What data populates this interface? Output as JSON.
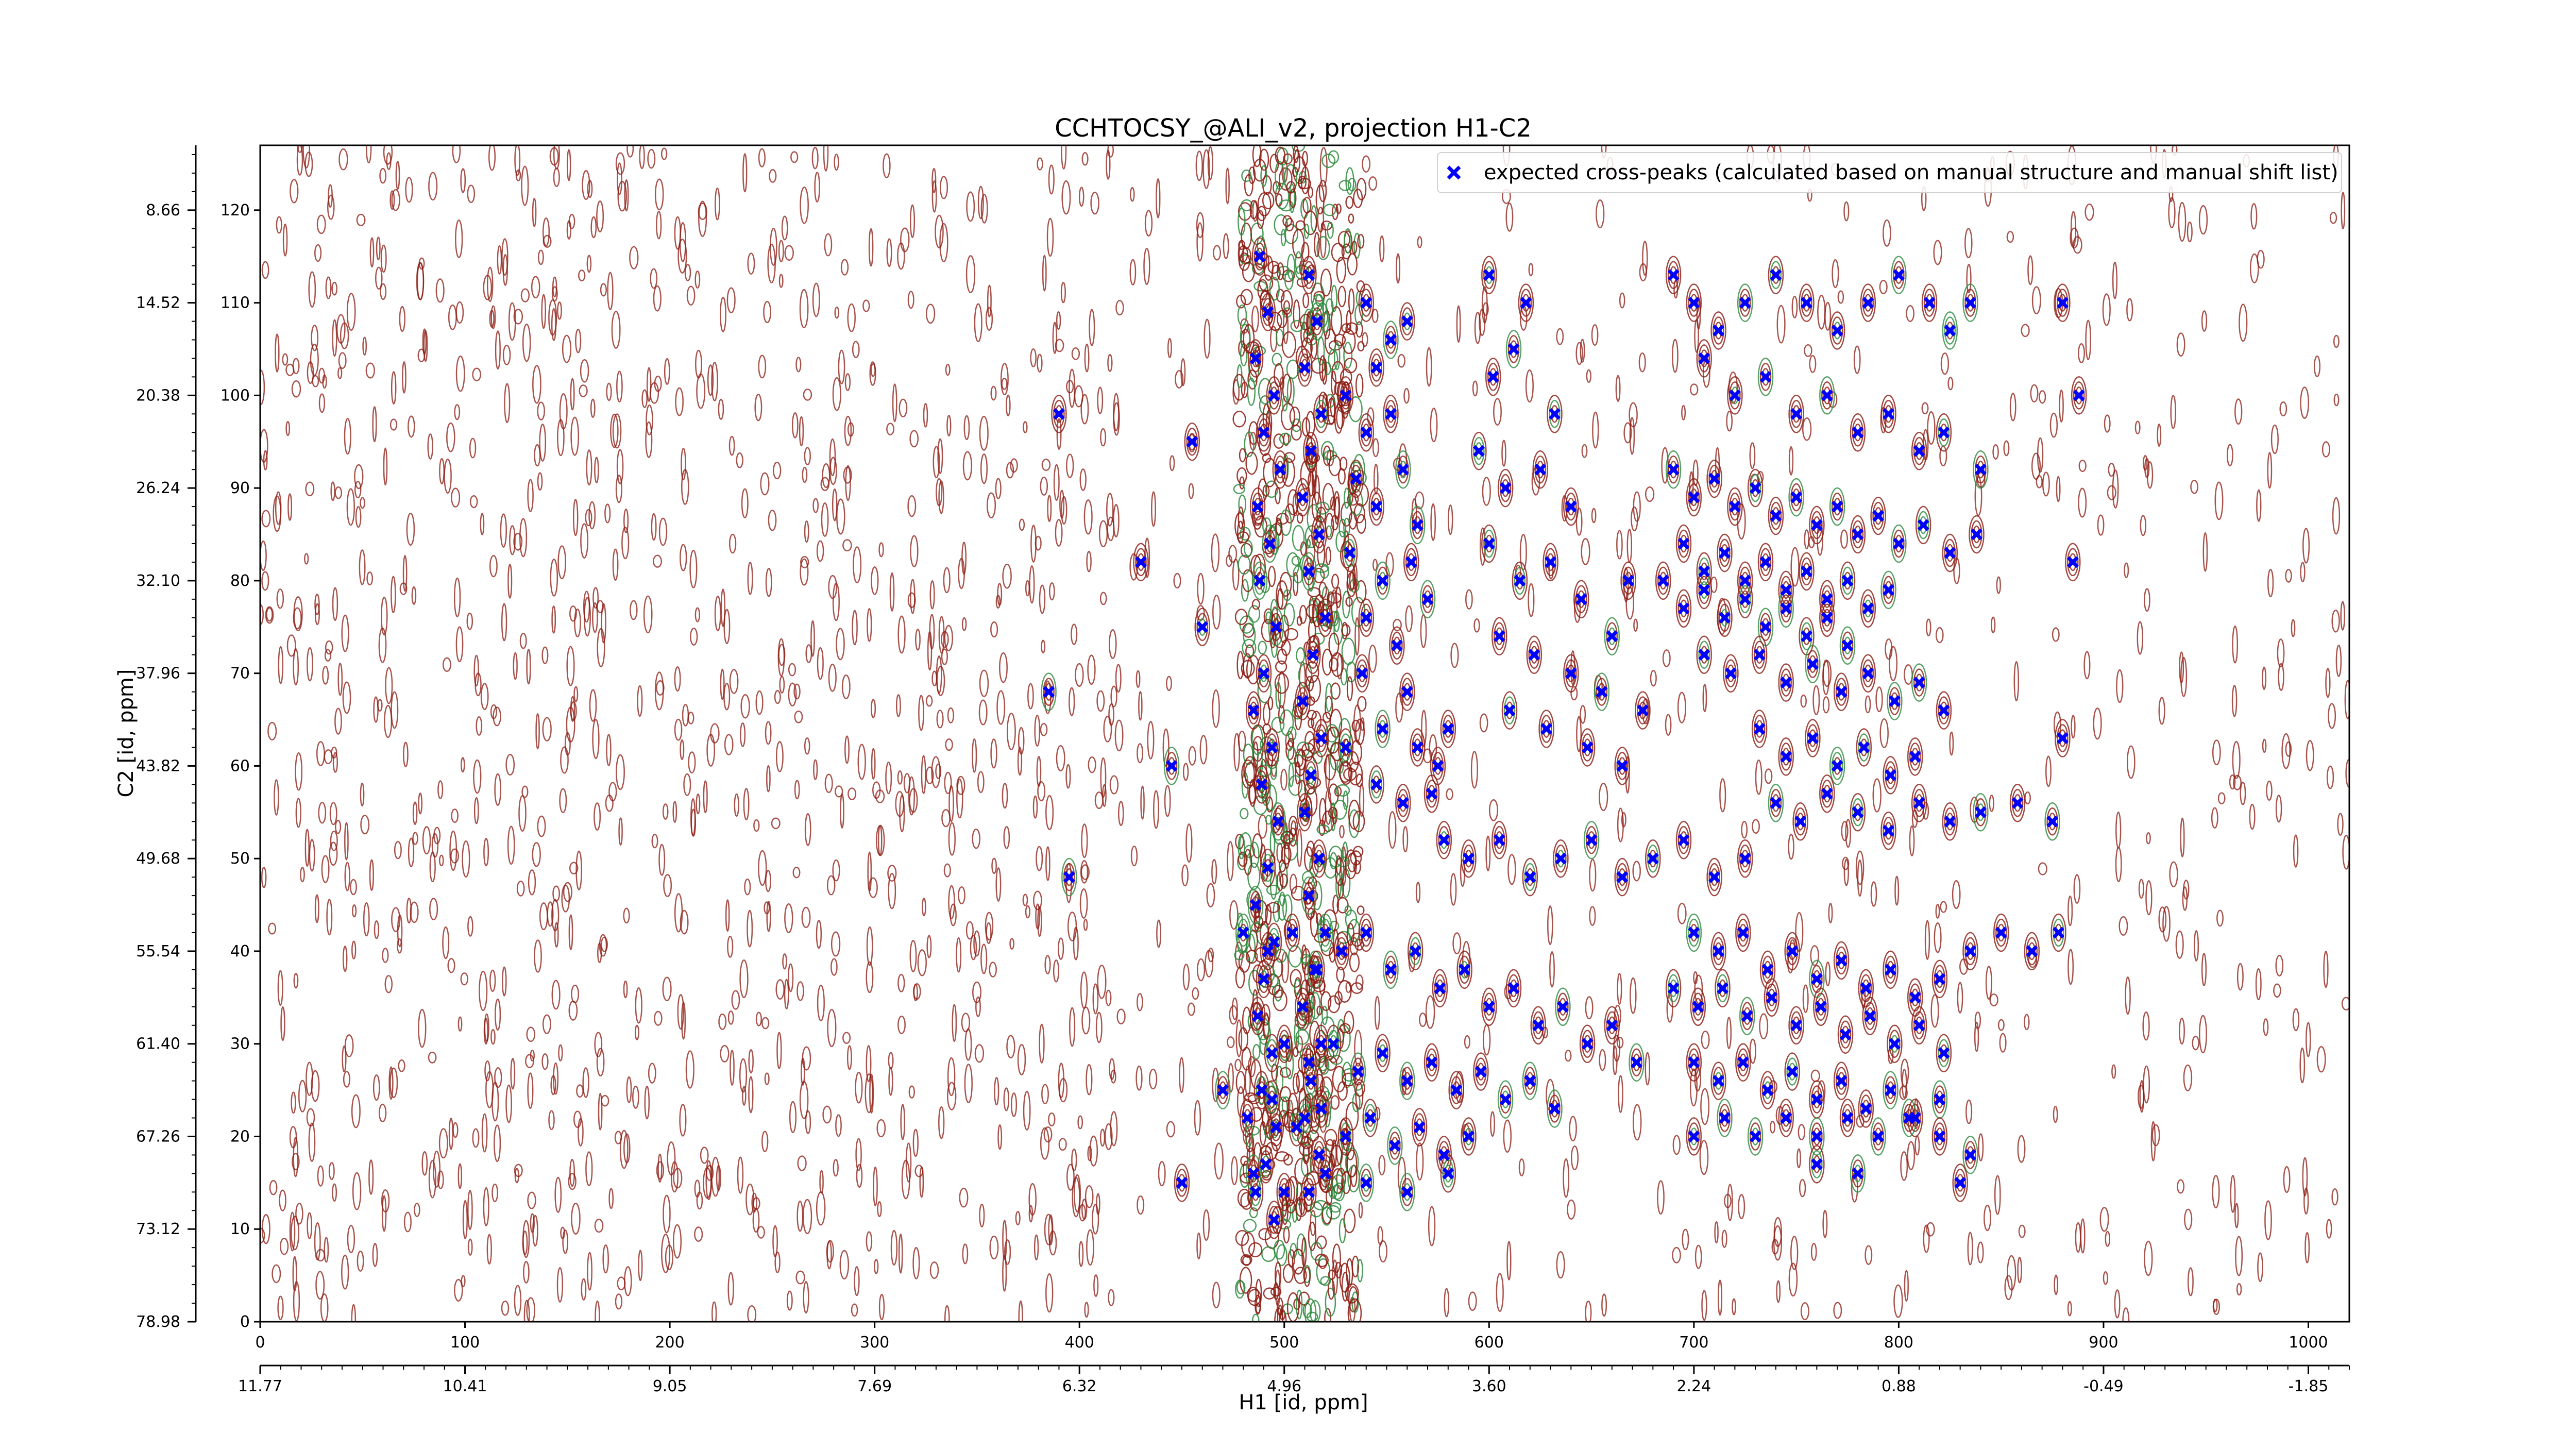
{
  "chart_data": {
    "type": "scatter",
    "title": "CCHTOCSY_@ALI_v2, projection H1-C2",
    "xlabel": "H1 [id, ppm]",
    "ylabel": "C2 [id, ppm]",
    "x_index_ticks": [
      "0",
      "100",
      "200",
      "300",
      "400",
      "500",
      "600",
      "700",
      "800",
      "900",
      "1000"
    ],
    "x_ppm_ticks": [
      "11.77",
      "10.41",
      "9.05",
      "7.69",
      "6.32",
      "4.96",
      "3.60",
      "2.24",
      "0.88",
      "-0.49",
      "-1.85"
    ],
    "y_index_ticks": [
      "0",
      "10",
      "20",
      "30",
      "40",
      "50",
      "60",
      "70",
      "80",
      "90",
      "100",
      "110",
      "120"
    ],
    "y_ppm_ticks": [
      "78.98",
      "73.12",
      "67.26",
      "61.40",
      "55.54",
      "49.68",
      "43.82",
      "37.96",
      "32.10",
      "26.24",
      "20.38",
      "14.52",
      "8.66"
    ],
    "xlim": [
      0,
      1020
    ],
    "ylim": [
      0,
      127
    ],
    "grid": false,
    "legend_position": "top-right",
    "colors": {
      "marker": "#0000ff",
      "contour_positive": "#8b1a10",
      "contour_negative": "#2e8b3e"
    },
    "series": [
      {
        "name": "expected cross-peaks (calculated based on manual structure and manual shift list)",
        "marker": "x",
        "points": [
          [
            488,
            115
          ],
          [
            492,
            109
          ],
          [
            486,
            104
          ],
          [
            495,
            100
          ],
          [
            490,
            96
          ],
          [
            498,
            92
          ],
          [
            487,
            88
          ],
          [
            493,
            84
          ],
          [
            488,
            80
          ],
          [
            496,
            75
          ],
          [
            490,
            70
          ],
          [
            485,
            66
          ],
          [
            494,
            62
          ],
          [
            489,
            58
          ],
          [
            497,
            54
          ],
          [
            492,
            49
          ],
          [
            486,
            45
          ],
          [
            495,
            41
          ],
          [
            490,
            37
          ],
          [
            487,
            33
          ],
          [
            494,
            29
          ],
          [
            489,
            25
          ],
          [
            496,
            21
          ],
          [
            491,
            17
          ],
          [
            486,
            14
          ],
          [
            495,
            11
          ],
          [
            512,
            113
          ],
          [
            516,
            108
          ],
          [
            510,
            103
          ],
          [
            518,
            98
          ],
          [
            513,
            94
          ],
          [
            509,
            89
          ],
          [
            517,
            85
          ],
          [
            512,
            81
          ],
          [
            520,
            76
          ],
          [
            514,
            72
          ],
          [
            509,
            67
          ],
          [
            518,
            63
          ],
          [
            513,
            59
          ],
          [
            510,
            55
          ],
          [
            517,
            50
          ],
          [
            512,
            46
          ],
          [
            520,
            42
          ],
          [
            515,
            38
          ],
          [
            509,
            34
          ],
          [
            518,
            30
          ],
          [
            513,
            26
          ],
          [
            510,
            22
          ],
          [
            517,
            18
          ],
          [
            512,
            14
          ],
          [
            530,
            100
          ],
          [
            540,
            96
          ],
          [
            552,
            98
          ],
          [
            535,
            91
          ],
          [
            545,
            88
          ],
          [
            558,
            92
          ],
          [
            565,
            86
          ],
          [
            532,
            83
          ],
          [
            548,
            80
          ],
          [
            562,
            82
          ],
          [
            540,
            76
          ],
          [
            555,
            73
          ],
          [
            570,
            78
          ],
          [
            538,
            70
          ],
          [
            560,
            68
          ],
          [
            548,
            64
          ],
          [
            565,
            62
          ],
          [
            575,
            60
          ],
          [
            530,
            62
          ],
          [
            545,
            58
          ],
          [
            558,
            56
          ],
          [
            580,
            64
          ],
          [
            572,
            57
          ],
          [
            540,
            110
          ],
          [
            552,
            106
          ],
          [
            560,
            108
          ],
          [
            545,
            103
          ],
          [
            600,
            113
          ],
          [
            618,
            110
          ],
          [
            602,
            102
          ],
          [
            612,
            105
          ],
          [
            632,
            98
          ],
          [
            595,
            94
          ],
          [
            608,
            90
          ],
          [
            625,
            92
          ],
          [
            640,
            88
          ],
          [
            600,
            84
          ],
          [
            615,
            80
          ],
          [
            630,
            82
          ],
          [
            645,
            78
          ],
          [
            605,
            74
          ],
          [
            622,
            72
          ],
          [
            640,
            70
          ],
          [
            655,
            68
          ],
          [
            610,
            66
          ],
          [
            628,
            64
          ],
          [
            648,
            62
          ],
          [
            665,
            60
          ],
          [
            675,
            66
          ],
          [
            660,
            74
          ],
          [
            668,
            80
          ],
          [
            690,
            113
          ],
          [
            700,
            110
          ],
          [
            712,
            107
          ],
          [
            725,
            110
          ],
          [
            740,
            113
          ],
          [
            755,
            110
          ],
          [
            770,
            107
          ],
          [
            785,
            110
          ],
          [
            800,
            113
          ],
          [
            815,
            110
          ],
          [
            825,
            107
          ],
          [
            835,
            110
          ],
          [
            705,
            104
          ],
          [
            720,
            100
          ],
          [
            735,
            102
          ],
          [
            750,
            98
          ],
          [
            765,
            100
          ],
          [
            780,
            96
          ],
          [
            795,
            98
          ],
          [
            810,
            94
          ],
          [
            822,
            96
          ],
          [
            840,
            92
          ],
          [
            690,
            92
          ],
          [
            700,
            89
          ],
          [
            710,
            91
          ],
          [
            720,
            88
          ],
          [
            730,
            90
          ],
          [
            740,
            87
          ],
          [
            750,
            89
          ],
          [
            760,
            86
          ],
          [
            770,
            88
          ],
          [
            780,
            85
          ],
          [
            790,
            87
          ],
          [
            800,
            84
          ],
          [
            812,
            86
          ],
          [
            825,
            83
          ],
          [
            838,
            85
          ],
          [
            695,
            84
          ],
          [
            705,
            81
          ],
          [
            715,
            83
          ],
          [
            725,
            80
          ],
          [
            735,
            82
          ],
          [
            745,
            79
          ],
          [
            755,
            81
          ],
          [
            765,
            78
          ],
          [
            775,
            80
          ],
          [
            785,
            77
          ],
          [
            795,
            79
          ],
          [
            685,
            80
          ],
          [
            695,
            77
          ],
          [
            705,
            79
          ],
          [
            715,
            76
          ],
          [
            725,
            78
          ],
          [
            735,
            75
          ],
          [
            745,
            77
          ],
          [
            755,
            74
          ],
          [
            765,
            76
          ],
          [
            775,
            73
          ],
          [
            705,
            72
          ],
          [
            718,
            70
          ],
          [
            732,
            72
          ],
          [
            745,
            69
          ],
          [
            758,
            71
          ],
          [
            772,
            68
          ],
          [
            785,
            70
          ],
          [
            798,
            67
          ],
          [
            810,
            69
          ],
          [
            822,
            66
          ],
          [
            732,
            64
          ],
          [
            745,
            61
          ],
          [
            758,
            63
          ],
          [
            770,
            60
          ],
          [
            783,
            62
          ],
          [
            796,
            59
          ],
          [
            808,
            61
          ],
          [
            740,
            56
          ],
          [
            752,
            54
          ],
          [
            765,
            57
          ],
          [
            780,
            55
          ],
          [
            795,
            53
          ],
          [
            810,
            56
          ],
          [
            825,
            54
          ],
          [
            840,
            55
          ],
          [
            858,
            56
          ],
          [
            875,
            54
          ],
          [
            578,
            52
          ],
          [
            590,
            50
          ],
          [
            605,
            52
          ],
          [
            620,
            48
          ],
          [
            635,
            50
          ],
          [
            650,
            52
          ],
          [
            665,
            48
          ],
          [
            680,
            50
          ],
          [
            695,
            52
          ],
          [
            710,
            48
          ],
          [
            725,
            50
          ],
          [
            480,
            42
          ],
          [
            492,
            40
          ],
          [
            504,
            42
          ],
          [
            516,
            38
          ],
          [
            528,
            40
          ],
          [
            540,
            42
          ],
          [
            552,
            38
          ],
          [
            564,
            40
          ],
          [
            576,
            36
          ],
          [
            588,
            38
          ],
          [
            600,
            34
          ],
          [
            612,
            36
          ],
          [
            624,
            32
          ],
          [
            636,
            34
          ],
          [
            648,
            30
          ],
          [
            660,
            32
          ],
          [
            672,
            28
          ],
          [
            700,
            42
          ],
          [
            712,
            40
          ],
          [
            724,
            42
          ],
          [
            736,
            38
          ],
          [
            748,
            40
          ],
          [
            760,
            37
          ],
          [
            772,
            39
          ],
          [
            784,
            36
          ],
          [
            796,
            38
          ],
          [
            808,
            35
          ],
          [
            820,
            37
          ],
          [
            835,
            40
          ],
          [
            850,
            42
          ],
          [
            865,
            40
          ],
          [
            878,
            42
          ],
          [
            690,
            36
          ],
          [
            702,
            34
          ],
          [
            714,
            36
          ],
          [
            726,
            33
          ],
          [
            738,
            35
          ],
          [
            750,
            32
          ],
          [
            762,
            34
          ],
          [
            774,
            31
          ],
          [
            786,
            33
          ],
          [
            798,
            30
          ],
          [
            810,
            32
          ],
          [
            822,
            29
          ],
          [
            500,
            30
          ],
          [
            512,
            28
          ],
          [
            524,
            30
          ],
          [
            536,
            27
          ],
          [
            548,
            29
          ],
          [
            560,
            26
          ],
          [
            572,
            28
          ],
          [
            584,
            25
          ],
          [
            596,
            27
          ],
          [
            608,
            24
          ],
          [
            620,
            26
          ],
          [
            632,
            23
          ],
          [
            700,
            28
          ],
          [
            712,
            26
          ],
          [
            724,
            28
          ],
          [
            736,
            25
          ],
          [
            748,
            27
          ],
          [
            760,
            24
          ],
          [
            772,
            26
          ],
          [
            784,
            23
          ],
          [
            796,
            25
          ],
          [
            808,
            22
          ],
          [
            820,
            24
          ],
          [
            470,
            25
          ],
          [
            482,
            22
          ],
          [
            494,
            24
          ],
          [
            506,
            21
          ],
          [
            518,
            23
          ],
          [
            530,
            20
          ],
          [
            542,
            22
          ],
          [
            554,
            19
          ],
          [
            566,
            21
          ],
          [
            578,
            18
          ],
          [
            590,
            20
          ],
          [
            700,
            20
          ],
          [
            715,
            22
          ],
          [
            730,
            20
          ],
          [
            745,
            22
          ],
          [
            760,
            20
          ],
          [
            775,
            22
          ],
          [
            790,
            20
          ],
          [
            805,
            22
          ],
          [
            820,
            20
          ],
          [
            835,
            18
          ],
          [
            450,
            15
          ],
          [
            485,
            16
          ],
          [
            500,
            14
          ],
          [
            520,
            16
          ],
          [
            540,
            15
          ],
          [
            560,
            14
          ],
          [
            580,
            16
          ],
          [
            760,
            17
          ],
          [
            780,
            16
          ],
          [
            830,
            15
          ],
          [
            395,
            48
          ],
          [
            445,
            60
          ],
          [
            385,
            68
          ],
          [
            460,
            75
          ],
          [
            430,
            82
          ],
          [
            390,
            98
          ],
          [
            455,
            95
          ],
          [
            880,
            110
          ],
          [
            885,
            82
          ],
          [
            880,
            63
          ],
          [
            888,
            100
          ]
        ]
      }
    ]
  }
}
